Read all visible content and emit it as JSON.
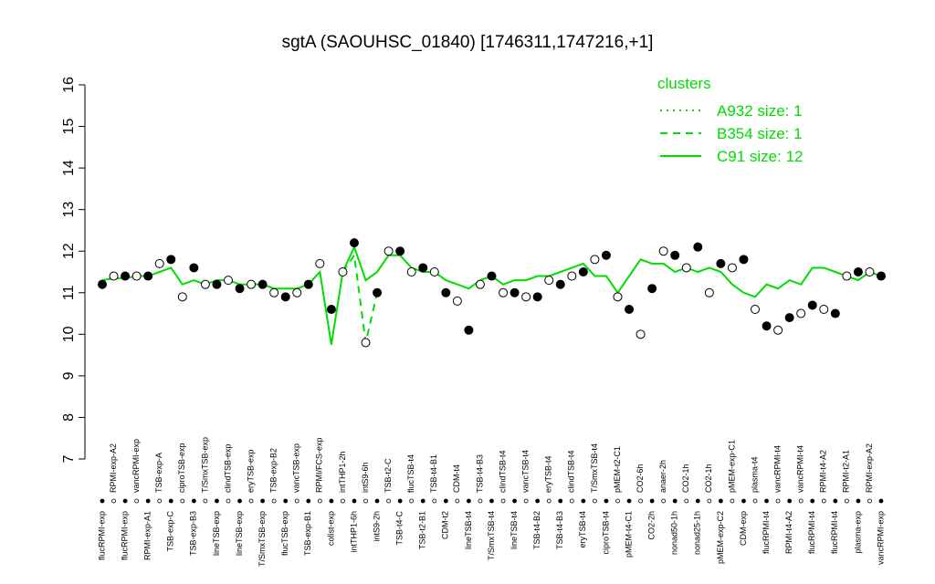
{
  "chart_data": {
    "type": "line",
    "title": "sgtA (SAOUHSC_01840) [1746311,1747216,+1]",
    "legend_title": "clusters",
    "legend_position": "top-right",
    "categories": [
      "flucRPMI-exp",
      "RPMI-exp-A2",
      "flucRPMI-exp",
      "vancRPMI-exp",
      "RPMI-exp-A1",
      "TSB-exp-A",
      "TSB-exp-C",
      "ciproTSB-exp",
      "TSB-exp-B3",
      "T/SmxTSB-exp",
      "lineTSB-exp",
      "clindTSB-exp",
      "lineTSB-exp",
      "eryTSB-exp",
      "T/SmxTSB-exp",
      "TSB-exp-B2",
      "flucTSB-exp",
      "vancTSB-exp",
      "TSB-exp-B1",
      "RPMI/FCS-exp",
      "colist-exp",
      "intTHP1-2h",
      "intTHP1-6h",
      "intS9-6h",
      "intS9-2h",
      "TSB-t2-C",
      "TSB-t4-C",
      "flucTSB-t4",
      "TSB-t2-B1",
      "TSB-t4-B1",
      "CDM-t2",
      "CDM-t4",
      "lineTSB-t4",
      "TSB-t4-B3",
      "T/SmxTSB-t4",
      "clindTSB-t4",
      "lineTSB-t4",
      "vancTSB-t4",
      "TSB-t4-B2",
      "eryTSB-t4",
      "TSB-t4-B3",
      "clindTSB-t4",
      "eryTSB-t4",
      "T/SmxTSB-t4",
      "ciproTSB-t4",
      "pMEM-t2-C1",
      "pMEM-t4-C1",
      "CO2-6h",
      "CO2-2h",
      "anaer-2h",
      "nonad50-1h",
      "CO2-1h",
      "nonad25-1h",
      "CO2-1h",
      "pMEM-exp-C2",
      "pMEM-exp-C1",
      "CDM-exp",
      "plasma-t4",
      "flucRPMI-t4",
      "vancRPMI-t4",
      "RPMI-t4-A2",
      "vancRPMI-t4",
      "flucRPMI-t4",
      "RPMI-t4-A2",
      "flucRPMI-t4",
      "RPMI-t2-A1",
      "plasma-exp",
      "RPMI-exp-A2",
      "vancRPMI-exp"
    ],
    "values": [
      11.2,
      11.4,
      11.4,
      11.4,
      11.4,
      11.7,
      11.8,
      10.9,
      11.6,
      11.2,
      11.2,
      11.3,
      11.1,
      11.2,
      11.2,
      11.0,
      10.9,
      11.0,
      11.2,
      11.7,
      10.6,
      11.5,
      12.2,
      9.8,
      11.0,
      12.0,
      12.0,
      11.5,
      11.6,
      11.5,
      11.0,
      10.8,
      10.1,
      11.2,
      11.4,
      11.0,
      11.0,
      10.9,
      10.9,
      11.3,
      11.2,
      11.4,
      11.5,
      11.8,
      11.9,
      10.9,
      10.6,
      10.0,
      11.1,
      12.0,
      11.9,
      11.6,
      12.1,
      11.0,
      11.7,
      11.6,
      11.8,
      10.6,
      10.2,
      10.1,
      10.4,
      10.5,
      10.7,
      10.6,
      10.5,
      11.4,
      11.5,
      11.5,
      11.4
    ],
    "filled": [
      true,
      false,
      true,
      false,
      true,
      false,
      true,
      false,
      true,
      false,
      true,
      false,
      true,
      false,
      true,
      false,
      true,
      false,
      true,
      false,
      true,
      false,
      true,
      false,
      true,
      false,
      true,
      false,
      true,
      false,
      true,
      false,
      true,
      false,
      true,
      false,
      true,
      false,
      true,
      false,
      true,
      false,
      true,
      false,
      true,
      false,
      true,
      false,
      true,
      false,
      true,
      false,
      true,
      false,
      true,
      false,
      true,
      false,
      true,
      false,
      true,
      false,
      true,
      false,
      true,
      false,
      true,
      false,
      true
    ],
    "series": [
      {
        "name": "A932 size: 1",
        "color": "#00dd00",
        "dash": "dotted"
      },
      {
        "name": "B354 size: 1",
        "color": "#00dd00",
        "dash": "dashed",
        "values": [
          null,
          null,
          null,
          null,
          null,
          null,
          null,
          null,
          null,
          null,
          null,
          null,
          null,
          null,
          null,
          null,
          null,
          null,
          null,
          null,
          null,
          11.5,
          11.9,
          9.8,
          11.0,
          null,
          null,
          null,
          null,
          null,
          null,
          null,
          null,
          null,
          null,
          null,
          null,
          null,
          null,
          null,
          null,
          null,
          null,
          null,
          null,
          null,
          null,
          null,
          null,
          null,
          null,
          null,
          null,
          null,
          null,
          null,
          null,
          null,
          null,
          null,
          null,
          null,
          null,
          null,
          null,
          null,
          null,
          null,
          null
        ]
      },
      {
        "name": "C91 size: 12",
        "color": "#00dd00",
        "dash": "solid",
        "values": [
          11.3,
          11.35,
          11.35,
          11.4,
          11.4,
          11.5,
          11.6,
          11.2,
          11.3,
          11.2,
          11.3,
          11.3,
          11.2,
          11.2,
          11.2,
          11.1,
          11.1,
          11.1,
          11.2,
          11.5,
          9.75,
          11.5,
          12.1,
          11.3,
          11.5,
          11.9,
          11.9,
          11.6,
          11.5,
          11.5,
          11.3,
          11.2,
          11.1,
          11.3,
          11.4,
          11.2,
          11.3,
          11.3,
          11.4,
          11.4,
          11.5,
          11.6,
          11.7,
          11.4,
          11.4,
          11.0,
          11.4,
          11.8,
          11.7,
          11.7,
          11.5,
          11.6,
          11.5,
          11.6,
          11.5,
          11.2,
          11.0,
          10.9,
          11.2,
          11.1,
          11.3,
          11.2,
          11.6,
          11.6,
          11.5,
          11.4,
          11.3,
          11.5,
          11.4
        ]
      }
    ],
    "ylim": [
      7,
      16
    ],
    "yticks": [
      7,
      8,
      9,
      10,
      11,
      12,
      13,
      14,
      15,
      16
    ]
  }
}
